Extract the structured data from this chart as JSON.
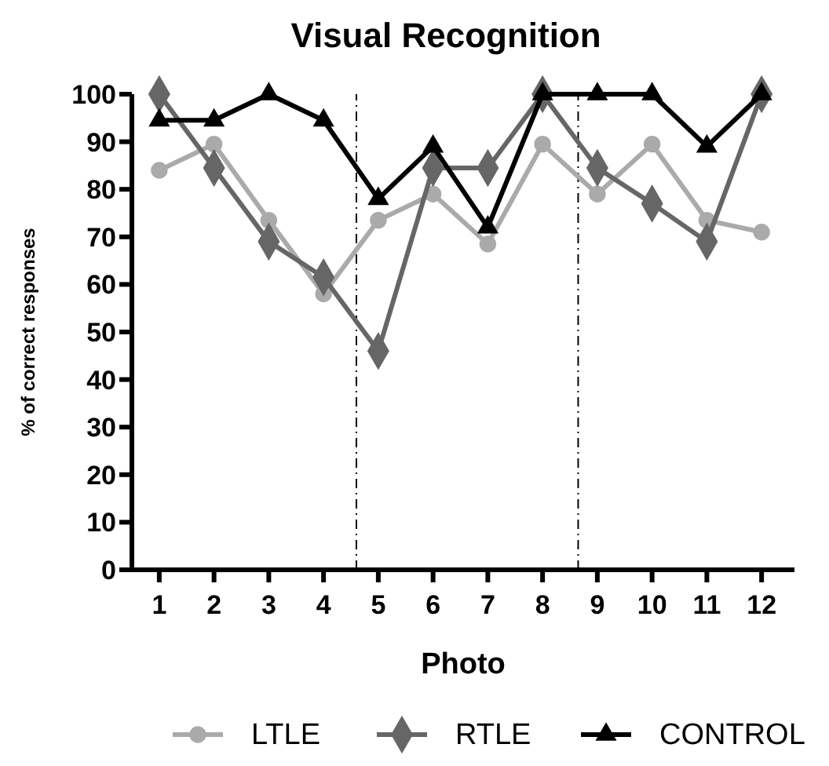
{
  "chart_data": {
    "type": "line",
    "title": "Visual Recognition",
    "xlabel": "Photo",
    "ylabel": "% of correct responses",
    "x": [
      1,
      2,
      3,
      4,
      5,
      6,
      7,
      8,
      9,
      10,
      11,
      12
    ],
    "xlim": [
      0.5,
      12.6
    ],
    "xticks": [
      1,
      2,
      3,
      4,
      5,
      6,
      7,
      8,
      9,
      10,
      11,
      12
    ],
    "ylim": [
      0,
      100
    ],
    "yticks": [
      0,
      10,
      20,
      30,
      40,
      50,
      60,
      70,
      80,
      90,
      100
    ],
    "grid": false,
    "legend": "bottom",
    "line_style": "solid",
    "ref_lines": [
      {
        "axis": "x",
        "value": 4.6,
        "line_style": "dashed"
      },
      {
        "axis": "x",
        "value": 8.65,
        "line_style": "dashed"
      }
    ],
    "series": [
      {
        "name": "LTLE",
        "color": "#aaaaaa",
        "marker": "circle",
        "values": [
          84,
          89.5,
          73.5,
          58,
          73.5,
          79,
          68.5,
          89.5,
          79,
          89.5,
          73.5,
          71
        ]
      },
      {
        "name": "RTLE",
        "color": "#666666",
        "marker": "diamond",
        "values": [
          100,
          84.5,
          69,
          61.5,
          46,
          84.5,
          84.5,
          100,
          84.5,
          77,
          69,
          100
        ]
      },
      {
        "name": "CONTROL",
        "color": "#000000",
        "marker": "triangle",
        "values": [
          94.5,
          94.5,
          100,
          94.5,
          78,
          89,
          72,
          100,
          100,
          100,
          89,
          100
        ]
      }
    ]
  }
}
